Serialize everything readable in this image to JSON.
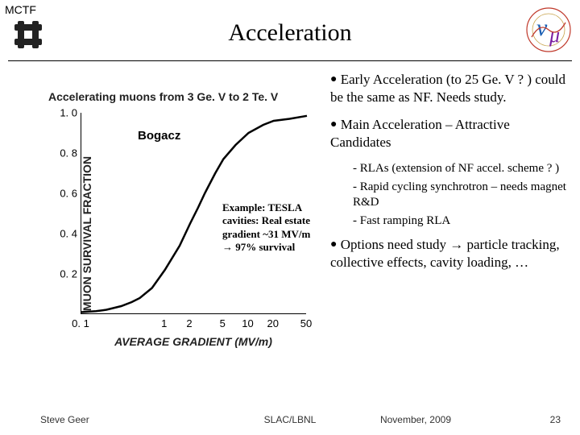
{
  "header": {
    "org": "MCTF",
    "title": "Acceleration"
  },
  "chart": {
    "caption": "Accelerating muons from 3 Ge. V to 2 Te. V",
    "curve_label": "Bogacz",
    "type": "line-logx",
    "x_label": "AVERAGE GRADIENT  (MV/m)",
    "y_label": "MUON SURVIVAL FRACTION",
    "xlim": [
      0.1,
      50
    ],
    "ylim": [
      0,
      1.0
    ],
    "y_ticks": [
      0.2,
      0.4,
      0.6,
      0.8,
      1.0
    ],
    "y_tick_labels": [
      "0. 2",
      "0. 4",
      "0. 6",
      "0. 8",
      "1. 0"
    ],
    "x_ticks": [
      0.1,
      1,
      2,
      5,
      10,
      20,
      50
    ],
    "x_tick_labels": [
      "0. 1",
      "1",
      "2",
      "5",
      "10",
      "20",
      "50"
    ],
    "line_color": "#000000",
    "line_width": 2.5,
    "points": [
      {
        "x": 0.1,
        "y": 0.01
      },
      {
        "x": 0.15,
        "y": 0.015
      },
      {
        "x": 0.2,
        "y": 0.022
      },
      {
        "x": 0.3,
        "y": 0.04
      },
      {
        "x": 0.4,
        "y": 0.06
      },
      {
        "x": 0.5,
        "y": 0.08
      },
      {
        "x": 0.7,
        "y": 0.13
      },
      {
        "x": 1.0,
        "y": 0.22
      },
      {
        "x": 1.5,
        "y": 0.34
      },
      {
        "x": 2.0,
        "y": 0.45
      },
      {
        "x": 2.5,
        "y": 0.53
      },
      {
        "x": 3.0,
        "y": 0.6
      },
      {
        "x": 4.0,
        "y": 0.7
      },
      {
        "x": 5.0,
        "y": 0.77
      },
      {
        "x": 7.0,
        "y": 0.84
      },
      {
        "x": 10.0,
        "y": 0.9
      },
      {
        "x": 15.0,
        "y": 0.94
      },
      {
        "x": 20.0,
        "y": 0.96
      },
      {
        "x": 31.0,
        "y": 0.97
      },
      {
        "x": 50.0,
        "y": 0.985
      }
    ],
    "example_text": "Example: TESLA cavities: Real estate gradient ~31 MV/m → 97% survival"
  },
  "bullets": {
    "b1": "Early Acceleration (to 25 Ge. V ? ) could be the same as NF. Needs study.",
    "b2": "Main Acceleration – Attractive Candidates",
    "s1": "- RLAs (extension of NF accel. scheme ? )",
    "s2": "- Rapid cycling synchrotron – needs magnet R&D",
    "s3": "- Fast ramping RLA",
    "b3": "Options need study → particle tracking, collective effects, cavity loading, …"
  },
  "footer": {
    "author": "Steve Geer",
    "venue": "SLAC/LBNL",
    "date": "November, 2009",
    "page": "23"
  },
  "colors": {
    "fermi_logo": "#222222",
    "nu_ring_outer": "#c0392b",
    "nu_ring_inner": "#ffffff",
    "nu_v": "#1a5fb4",
    "nu_mu": "#7b1fa2"
  }
}
